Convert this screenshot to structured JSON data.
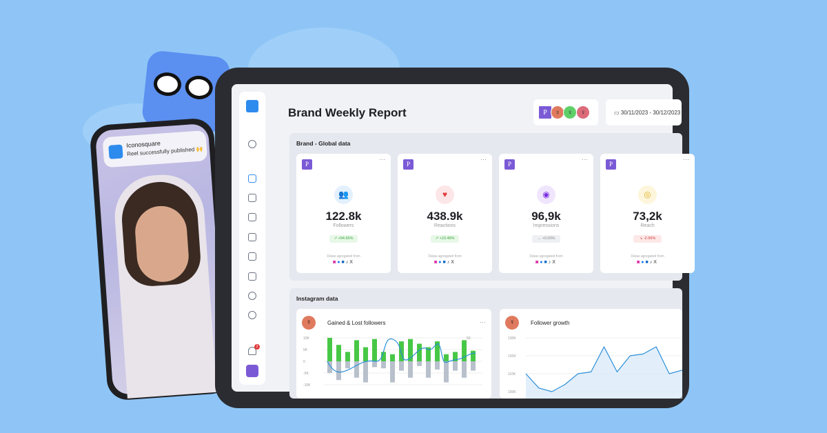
{
  "phone": {
    "notification": {
      "app": "Iconosquare",
      "message": "Reel successfully published 🙌"
    }
  },
  "header": {
    "title": "Brand Weekly Report",
    "date_range": "30/11/2023 - 30/12/2023",
    "account_initial": "P"
  },
  "global": {
    "section_title": "Brand - Global data",
    "aggregated_label": "Datas agregated from",
    "networks": [
      "instagram",
      "facebook",
      "linkedin",
      "tiktok",
      "x"
    ],
    "cards": [
      {
        "icon": "followers-icon",
        "value": "122.8k",
        "label": "Followers",
        "change": "↗ +94.65%",
        "trend": "up"
      },
      {
        "icon": "heart-icon",
        "value": "438.9k",
        "label": "Reactions",
        "change": "↗ +23.48%",
        "trend": "up"
      },
      {
        "icon": "eye-icon",
        "value": "96,9k",
        "label": "Impressions",
        "change": "→ +0.00%",
        "trend": "flat"
      },
      {
        "icon": "target-icon",
        "value": "73,2k",
        "label": "Reach",
        "change": "↘ -2.95%",
        "trend": "down"
      }
    ]
  },
  "instagram": {
    "section_title": "Instagram data"
  },
  "sidebar": {
    "notification_count": "2"
  },
  "colors": {
    "background": "#8ec5f6",
    "gained": "#47c746",
    "lost": "#b8c0cc",
    "line": "#2b8fd8",
    "accent": "#7b5ad6"
  },
  "chart_data": [
    {
      "type": "bar",
      "title": "Gained & Lost followers",
      "yticks": [
        "10K",
        "5K",
        "0",
        "-5K",
        "-10K"
      ],
      "ylim": [
        -10000,
        10000
      ],
      "y2ticks": [
        "50"
      ],
      "series": [
        {
          "values": [
            10000,
            7000,
            4000,
            9000,
            6000,
            9500,
            4000,
            3000,
            8500,
            9500,
            7500,
            6000,
            8500,
            3000,
            4000,
            9000,
            4500
          ]
        },
        {
          "values": [
            -5000,
            -8000,
            -3000,
            -7000,
            -9000,
            -2500,
            -3000,
            -9000,
            -4000,
            -7000,
            -2000,
            -7000,
            -3500,
            -9000,
            -4000,
            -7000,
            -4000
          ]
        }
      ]
    },
    {
      "type": "area",
      "title": "Follower growth",
      "yticks": [
        "130K",
        "120K",
        "110K",
        "100K"
      ],
      "ylim": [
        100000,
        130000
      ],
      "values": [
        110000,
        102000,
        100000,
        104000,
        110000,
        111000,
        125000,
        111000,
        120000,
        121000,
        125000,
        110000,
        112000
      ]
    }
  ]
}
